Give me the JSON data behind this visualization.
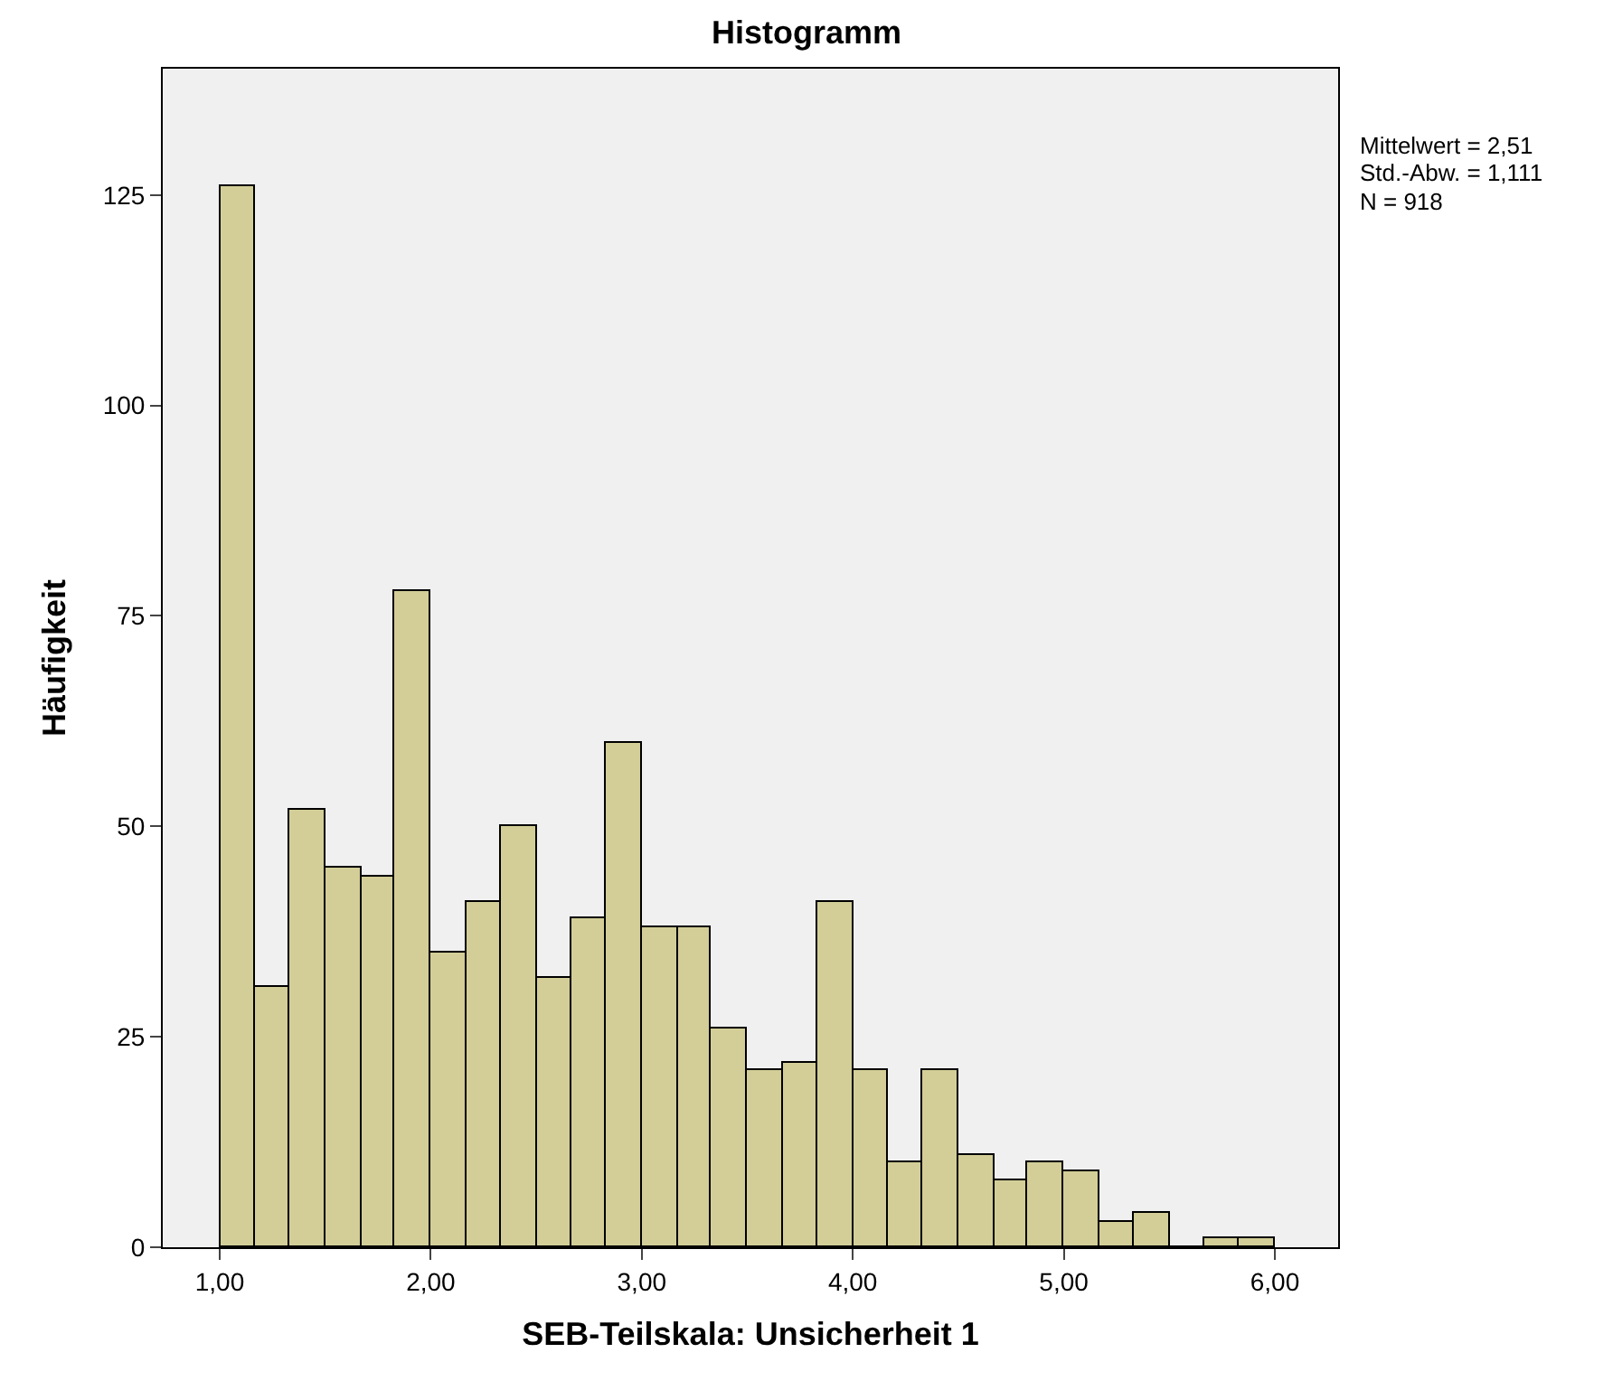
{
  "chart_data": {
    "type": "histogram",
    "title": "Histogramm",
    "xlabel": "SEB-Teilskala: Unsicherheit 1",
    "ylabel": "Häufigkeit",
    "bins": [
      1,
      1.17,
      1.33,
      1.5,
      1.67,
      1.83,
      2,
      2.17,
      2.33,
      2.5,
      2.67,
      2.83,
      3,
      3.17,
      3.33,
      3.5,
      3.67,
      3.83,
      4,
      4.17,
      4.33,
      4.5,
      4.67,
      4.83,
      5,
      5.17,
      5.33,
      5.5,
      5.67,
      5.83,
      6
    ],
    "values": [
      126,
      31,
      52,
      45,
      44,
      78,
      35,
      41,
      50,
      32,
      39,
      60,
      38,
      38,
      26,
      21,
      22,
      41,
      21,
      10,
      21,
      11,
      8,
      10,
      9,
      3,
      4,
      0,
      1,
      1
    ],
    "color": "#d3ce97",
    "xlim": [
      0.73,
      6.3
    ],
    "xticks": [
      {
        "value": 1,
        "label": "1,00"
      },
      {
        "value": 2,
        "label": "2,00"
      },
      {
        "value": 3,
        "label": "3,00"
      },
      {
        "value": 4,
        "label": "4,00"
      },
      {
        "value": 5,
        "label": "5,00"
      },
      {
        "value": 6,
        "label": "6,00"
      }
    ],
    "ylim": [
      0,
      140
    ],
    "yticks": [
      0,
      25,
      50,
      75,
      100,
      125
    ],
    "grid": false,
    "annotations": [
      "Mittelwert = 2,51",
      "Std.-Abw. = 1,111",
      "N = 918"
    ]
  }
}
